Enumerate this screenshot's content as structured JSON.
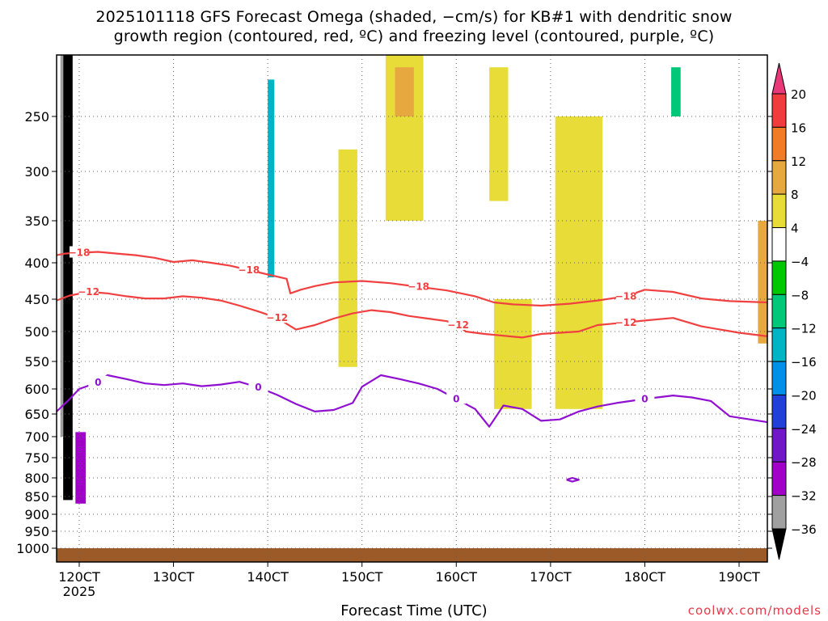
{
  "title_line1": "2025101118 GFS Forecast Omega (shaded, −cm/s) for KB#1 with dendritic snow",
  "title_line2": "growth region (contoured, red, ºC) and freezing level (contoured, purple, ºC)",
  "xlabel": "Forecast Time (UTC)",
  "credit": "coolwx.com/models",
  "chart_data": {
    "type": "heatmap",
    "title": "2025101118 GFS Forecast Omega (shaded, −cm/s) for KB#1 with dendritic snow growth region (contoured, red, ºC) and freezing level (contoured, purple, ºC)",
    "xlabel": "Forecast Time (UTC)",
    "ylabel": "",
    "x_ticks": [
      "120CT",
      "130CT",
      "140CT",
      "150CT",
      "160CT",
      "170CT",
      "180CT",
      "190CT"
    ],
    "x_tick_values": [
      120,
      130,
      140,
      150,
      160,
      170,
      180,
      190
    ],
    "x_sublabel": "2025",
    "xlim": [
      117.6,
      193.0
    ],
    "y_ticks": [
      250,
      300,
      350,
      400,
      450,
      500,
      550,
      600,
      650,
      700,
      750,
      800,
      850,
      900,
      950,
      1000
    ],
    "ylim": [
      1000,
      200
    ],
    "y_scale": "pressure (inverted)",
    "grid": true,
    "colorbar": {
      "labels": [
        "20",
        "16",
        "12",
        "8",
        "4",
        "−4",
        "−8",
        "−12",
        "−16",
        "−20",
        "−24",
        "−28",
        "−32",
        "−36"
      ],
      "colors": [
        "#e8387a",
        "#f03c3c",
        "#f07c28",
        "#e8a840",
        "#e8dc38",
        "#ffffff",
        "#00c800",
        "#00c878",
        "#00b4c8",
        "#0090e8",
        "#2040d8",
        "#7018c8",
        "#a000c8",
        "#a0a0a0",
        "#000000"
      ]
    },
    "contours": [
      {
        "name": "-18",
        "color": "#f04040",
        "label": "−18",
        "points": [
          [
            117.6,
            391
          ],
          [
            118.5,
            389
          ],
          [
            120,
            388
          ],
          [
            122,
            387
          ],
          [
            124,
            389
          ],
          [
            126,
            391
          ],
          [
            128,
            394
          ],
          [
            130,
            399
          ],
          [
            132,
            397
          ],
          [
            134,
            400
          ],
          [
            136,
            404
          ],
          [
            138,
            410
          ],
          [
            140,
            416
          ],
          [
            142,
            422
          ],
          [
            142.4,
            442
          ],
          [
            143.5,
            437
          ],
          [
            145,
            432
          ],
          [
            147,
            427
          ],
          [
            150,
            425
          ],
          [
            153,
            428
          ],
          [
            156,
            433
          ],
          [
            159,
            438
          ],
          [
            162,
            446
          ],
          [
            164,
            455
          ],
          [
            166,
            458
          ],
          [
            169,
            460
          ],
          [
            172,
            457
          ],
          [
            175,
            452
          ],
          [
            178,
            446
          ],
          [
            180,
            437
          ],
          [
            183,
            440
          ],
          [
            186,
            449
          ],
          [
            189,
            453
          ],
          [
            193,
            455
          ]
        ]
      },
      {
        "name": "-12",
        "color": "#f04040",
        "label": "−12",
        "points": [
          [
            117.6,
            452
          ],
          [
            119,
            445
          ],
          [
            121,
            440
          ],
          [
            123,
            442
          ],
          [
            125,
            446
          ],
          [
            127,
            449
          ],
          [
            129,
            449
          ],
          [
            131,
            446
          ],
          [
            133,
            448
          ],
          [
            135,
            452
          ],
          [
            137,
            460
          ],
          [
            139,
            469
          ],
          [
            141,
            479
          ],
          [
            143,
            497
          ],
          [
            145,
            490
          ],
          [
            147,
            480
          ],
          [
            149,
            472
          ],
          [
            151,
            467
          ],
          [
            153,
            470
          ],
          [
            155,
            476
          ],
          [
            157,
            480
          ],
          [
            159,
            484
          ],
          [
            160.2,
            490
          ],
          [
            161,
            500
          ],
          [
            163,
            504
          ],
          [
            165,
            507
          ],
          [
            167,
            510
          ],
          [
            169,
            504
          ],
          [
            171,
            502
          ],
          [
            173,
            500
          ],
          [
            175,
            490
          ],
          [
            178,
            486
          ],
          [
            180,
            483
          ],
          [
            183,
            479
          ],
          [
            186,
            492
          ],
          [
            190,
            502
          ],
          [
            193,
            508
          ]
        ]
      },
      {
        "name": "0",
        "color": "#9010d0",
        "label": "0",
        "points": [
          [
            117.6,
            645
          ],
          [
            119,
            620
          ],
          [
            120,
            600
          ],
          [
            122,
            588
          ],
          [
            123,
            575
          ],
          [
            125,
            582
          ],
          [
            127,
            590
          ],
          [
            129,
            593
          ],
          [
            131,
            590
          ],
          [
            133,
            595
          ],
          [
            135,
            592
          ],
          [
            137,
            587
          ],
          [
            139,
            597
          ],
          [
            141,
            612
          ],
          [
            143,
            630
          ],
          [
            145,
            645
          ],
          [
            147,
            642
          ],
          [
            149,
            628
          ],
          [
            150,
            596
          ],
          [
            152,
            575
          ],
          [
            154,
            582
          ],
          [
            156,
            590
          ],
          [
            158,
            600
          ],
          [
            160,
            620
          ],
          [
            162,
            640
          ],
          [
            163.5,
            678
          ],
          [
            165,
            633
          ],
          [
            167,
            640
          ],
          [
            169,
            665
          ],
          [
            171,
            662
          ],
          [
            173,
            645
          ],
          [
            175,
            635
          ],
          [
            177,
            628
          ],
          [
            180,
            620
          ],
          [
            183,
            613
          ],
          [
            185,
            617
          ],
          [
            187,
            624
          ],
          [
            189,
            655
          ],
          [
            193,
            668
          ]
        ]
      },
      {
        "name": "0-closed",
        "color": "#9010d0",
        "label": "",
        "points": [
          [
            171.7,
            805
          ],
          [
            172.3,
            800
          ],
          [
            173.0,
            805
          ],
          [
            172.3,
            810
          ],
          [
            171.7,
            805
          ]
        ]
      }
    ],
    "shading": [
      {
        "value": "−36",
        "color": "#000000",
        "x": [
          118.3,
          119.3
        ],
        "p": [
          200,
          860
        ]
      },
      {
        "value": "−32",
        "color": "#a0a0a0",
        "x": [
          118.0,
          118.3
        ],
        "p": [
          200,
          700
        ]
      },
      {
        "value": "−28",
        "color": "#a000c8",
        "x": [
          119.6,
          120.7
        ],
        "p": [
          690,
          870
        ]
      },
      {
        "value": "−16",
        "color": "#00b4c8",
        "x": [
          140.0,
          140.7
        ],
        "p": [
          220,
          420
        ]
      },
      {
        "value": "−12",
        "color": "#00c878",
        "x": [
          182.8,
          183.8
        ],
        "p": [
          210,
          250
        ]
      },
      {
        "value": "4",
        "color": "#e8dc38",
        "x": [
          147.5,
          149.5
        ],
        "p": [
          280,
          560
        ]
      },
      {
        "value": "4",
        "color": "#e8dc38",
        "x": [
          152.5,
          156.5
        ],
        "p": [
          200,
          350
        ]
      },
      {
        "value": "4",
        "color": "#e8dc38",
        "x": [
          163.5,
          165.5
        ],
        "p": [
          210,
          330
        ]
      },
      {
        "value": "4",
        "color": "#e8dc38",
        "x": [
          170.5,
          175.5
        ],
        "p": [
          250,
          640
        ]
      },
      {
        "value": "4",
        "color": "#e8dc38",
        "x": [
          164.0,
          168.0
        ],
        "p": [
          450,
          640
        ]
      },
      {
        "value": "8",
        "color": "#e8a840",
        "x": [
          153.5,
          155.5
        ],
        "p": [
          210,
          250
        ]
      },
      {
        "value": "8",
        "color": "#e8a840",
        "x": [
          192.0,
          193.0
        ],
        "p": [
          350,
          520
        ]
      }
    ],
    "ground": {
      "color": "#9c5a28",
      "p_top": 1000
    }
  }
}
